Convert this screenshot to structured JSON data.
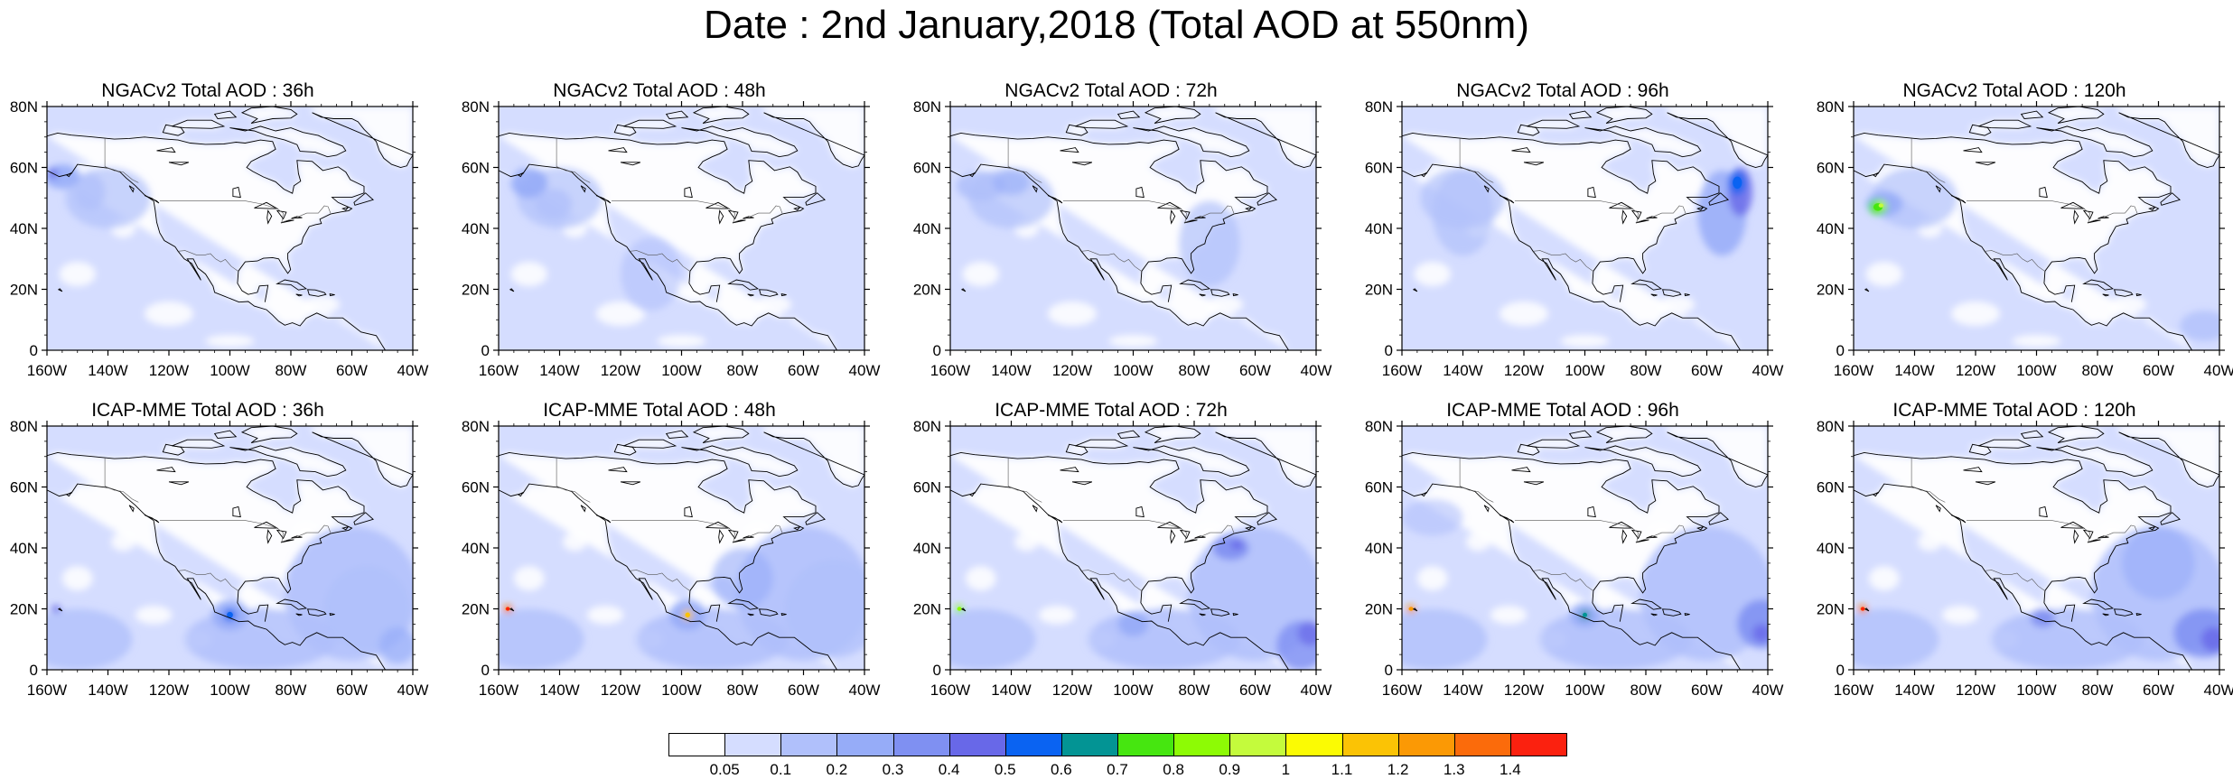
{
  "title": "Date : 2nd January,2018 (Total AOD at 550nm)",
  "panels": [
    {
      "title": "NGACv2 Total AOD : 36h",
      "model": "NGACv2",
      "lead": "36h"
    },
    {
      "title": "NGACv2 Total AOD : 48h",
      "model": "NGACv2",
      "lead": "48h"
    },
    {
      "title": "NGACv2 Total AOD : 72h",
      "model": "NGACv2",
      "lead": "72h"
    },
    {
      "title": "NGACv2 Total AOD : 96h",
      "model": "NGACv2",
      "lead": "96h"
    },
    {
      "title": "NGACv2 Total AOD : 120h",
      "model": "NGACv2",
      "lead": "120h"
    },
    {
      "title": "ICAP-MME Total AOD : 36h",
      "model": "ICAP-MME",
      "lead": "36h"
    },
    {
      "title": "ICAP-MME Total AOD : 48h",
      "model": "ICAP-MME",
      "lead": "48h"
    },
    {
      "title": "ICAP-MME Total AOD : 72h",
      "model": "ICAP-MME",
      "lead": "72h"
    },
    {
      "title": "ICAP-MME Total AOD : 96h",
      "model": "ICAP-MME",
      "lead": "96h"
    },
    {
      "title": "ICAP-MME Total AOD : 120h",
      "model": "ICAP-MME",
      "lead": "120h"
    }
  ],
  "axes": {
    "lat_labels": [
      "0",
      "20N",
      "40N",
      "60N",
      "80N"
    ],
    "lat_values": [
      0,
      20,
      40,
      60,
      80
    ],
    "lon_labels": [
      "160W",
      "140W",
      "120W",
      "100W",
      "80W",
      "60W",
      "40W"
    ],
    "lon_values": [
      -160,
      -140,
      -120,
      -100,
      -80,
      -60,
      -40
    ],
    "lat_range": [
      0,
      80
    ],
    "lon_range": [
      -160,
      -40
    ]
  },
  "colorbar": {
    "levels": [
      "0.05",
      "0.1",
      "0.2",
      "0.3",
      "0.4",
      "0.5",
      "0.6",
      "0.7",
      "0.8",
      "0.9",
      "1",
      "1.1",
      "1.2",
      "1.3",
      "1.4"
    ],
    "colors": [
      "#ffffff",
      "#d5ddff",
      "#b0c0fb",
      "#96acf8",
      "#7f90f2",
      "#6868e8",
      "#0a63f2",
      "#039494",
      "#46e610",
      "#8dfb05",
      "#c4fb3c",
      "#fbfb03",
      "#fbc305",
      "#fb9905",
      "#fb6b0b",
      "#fb210f"
    ]
  }
}
